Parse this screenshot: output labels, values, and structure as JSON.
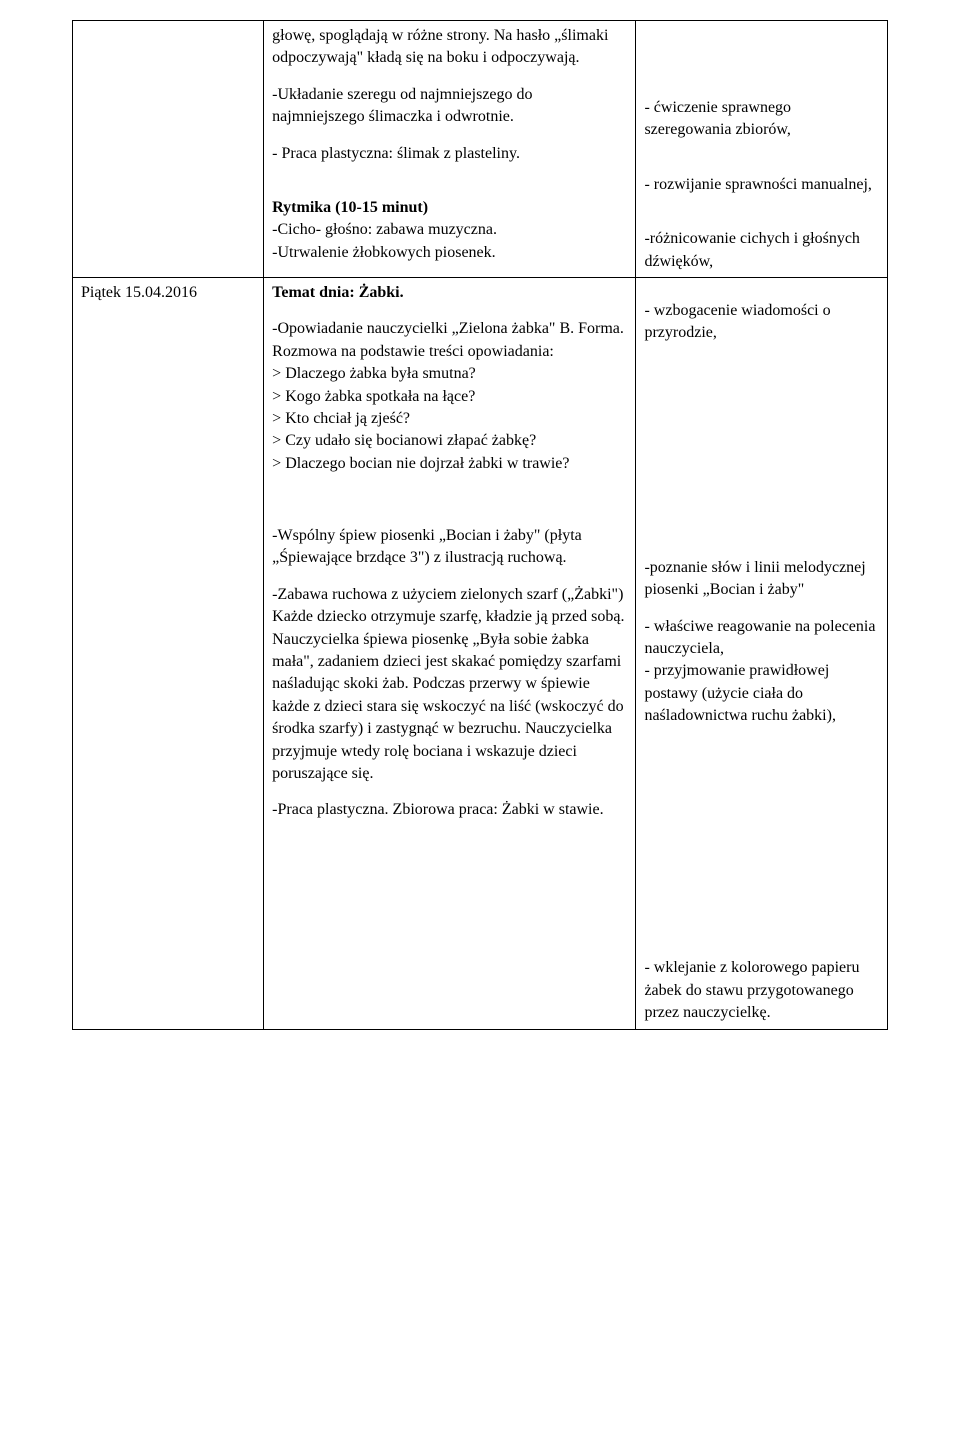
{
  "row1": {
    "left": "",
    "mid": {
      "p1": "głowę, spoglądają w różne strony. Na hasło „ślimaki odpoczywają\" kładą się na boku i odpoczywają.",
      "p2": "-Układanie szeregu od najmniejszego do najmniejszego ślimaczka i odwrotnie.",
      "p3": "- Praca plastyczna: ślimak z plasteliny.",
      "p4_bold": "Rytmika (10-15 minut)",
      "p5": "-Cicho- głośno: zabawa muzyczna.",
      "p6": "-Utrwalenie żłobkowych piosenek."
    },
    "right": {
      "p1": "- ćwiczenie sprawnego szeregowania zbiorów,",
      "p2": "- rozwijanie sprawności manualnej,",
      "p3": "-różnicowanie cichych i głośnych dźwięków,"
    }
  },
  "row2": {
    "left": "Piątek 15.04.2016",
    "mid": {
      "title": "Temat dnia: Żabki.",
      "p1": "-Opowiadanie nauczycielki „Zielona żabka\" B. Forma. Rozmowa na podstawie treści opowiadania:",
      "q1": "> Dlaczego żabka była smutna?",
      "q2": "> Kogo żabka spotkała na łące?",
      "q3": "> Kto chciał ją zjeść?",
      "q4": "> Czy udało się bocianowi złapać żabkę?",
      "q5": "> Dlaczego bocian nie dojrzał żabki w trawie?",
      "p2": "-Wspólny śpiew piosenki „Bocian i żaby\" (płyta „Śpiewające brzdące 3\") z ilustracją ruchową.",
      "p3": "-Zabawa ruchowa z użyciem zielonych szarf („Żabki\")",
      "p4": "Każde dziecko otrzymuje szarfę, kładzie ją przed sobą. Nauczycielka śpiewa piosenkę „Była sobie żabka mała\", zadaniem dzieci jest skakać pomiędzy szarfami naśladując skoki żab. Podczas przerwy w śpiewie każde z dzieci stara się wskoczyć na liść (wskoczyć do środka szarfy) i zastygnąć w bezruchu. Nauczycielka przyjmuje wtedy rolę bociana i wskazuje dzieci poruszające się.",
      "p5": "-Praca plastyczna. Zbiorowa praca: Żabki w stawie."
    },
    "right": {
      "p1": "- wzbogacenie wiadomości o przyrodzie,",
      "p2": "-poznanie słów i linii melodycznej piosenki „Bocian i żaby\"",
      "p3": "-  właściwe reagowanie na polecenia nauczyciela,",
      "p4": "- przyjmowanie prawidłowej postawy (użycie ciała do naśladownictwa ruchu żabki),",
      "p5": "- wklejanie z kolorowego papieru żabek do stawu przygotowanego przez nauczycielkę."
    }
  }
}
